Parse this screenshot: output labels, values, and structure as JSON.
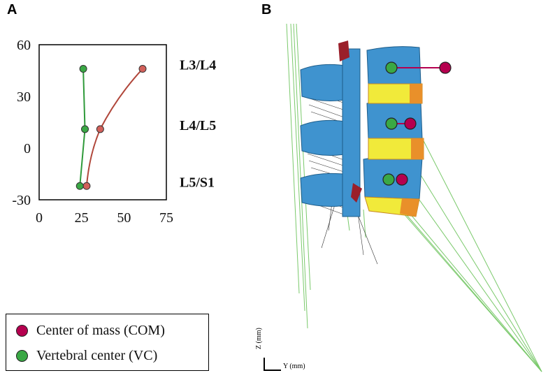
{
  "panels": {
    "a": "A",
    "b": "B"
  },
  "colors": {
    "com": "#b5004f",
    "vc": "#3aa845",
    "com_line": "#b0463a",
    "vc_line": "#2f9a3a",
    "bone": "#3f93cf",
    "disc": "#f1ea3a",
    "annulus": "#e9902a",
    "ligament": "#7ac96b",
    "process": "#9a1f2a"
  },
  "chart_data": {
    "type": "line",
    "xlim": [
      0,
      75
    ],
    "ylim": [
      -30,
      60
    ],
    "x_ticks": [
      "0",
      "25",
      "50",
      "75"
    ],
    "y_ticks": [
      "60",
      "30",
      "0",
      "-30"
    ],
    "y_tick_values": [
      60,
      30,
      0,
      -30
    ],
    "x_tick_values": [
      0,
      25,
      50,
      75
    ],
    "levels": [
      "L3/L4",
      "L4/L5",
      "L5/S1"
    ],
    "series": [
      {
        "key": "com",
        "x": [
          61,
          36,
          28
        ],
        "y": [
          46,
          11,
          -22
        ]
      },
      {
        "key": "vc",
        "x": [
          26,
          27,
          24
        ],
        "y": [
          46,
          11,
          -22
        ]
      }
    ]
  },
  "legend": {
    "com_label": "Center of mass (COM)",
    "vc_label": "Vertebral center (VC)"
  },
  "axes_3d": {
    "z_label": "Z (mm)",
    "y_label": "Y (mm)"
  }
}
